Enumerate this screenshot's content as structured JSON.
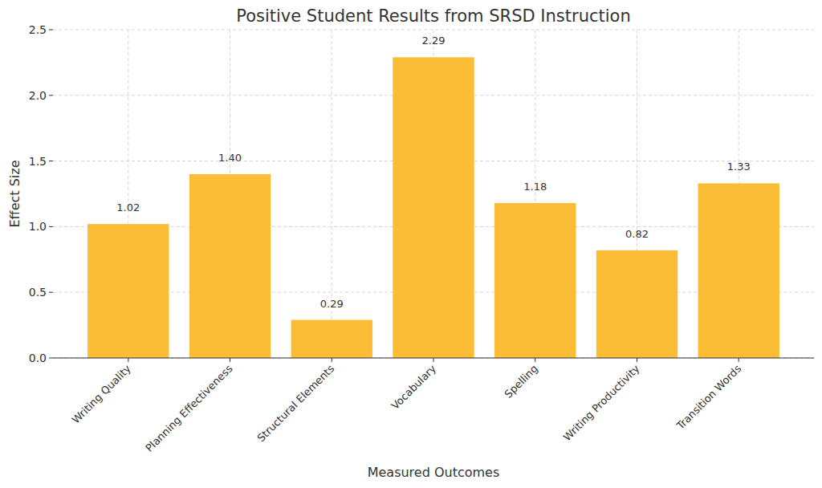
{
  "chart_data": {
    "type": "bar",
    "title": "Positive Student Results from SRSD Instruction",
    "x_label": "Measured Outcomes",
    "y_label": "Effect Size",
    "categories": [
      "Writing Quality",
      "Planning Effectiveness",
      "Structural Elements",
      "Vocabulary",
      "Spelling",
      "Writing Productivity",
      "Transition Words"
    ],
    "values": [
      1.02,
      1.4,
      0.29,
      2.29,
      1.18,
      0.82,
      1.33
    ],
    "value_labels": [
      "1.02",
      "1.40",
      "0.29",
      "2.29",
      "1.18",
      "0.82",
      "1.33"
    ],
    "color": "#fbbd36",
    "ylim": [
      0,
      2.5
    ],
    "yticks": [
      {
        "value": 0,
        "label": "0.0"
      },
      0.5,
      {
        "value": 1,
        "label": "1.0"
      },
      1.5,
      {
        "value": 2,
        "label": "2.0"
      },
      2.5
    ],
    "grid": true,
    "data_labels": true
  }
}
